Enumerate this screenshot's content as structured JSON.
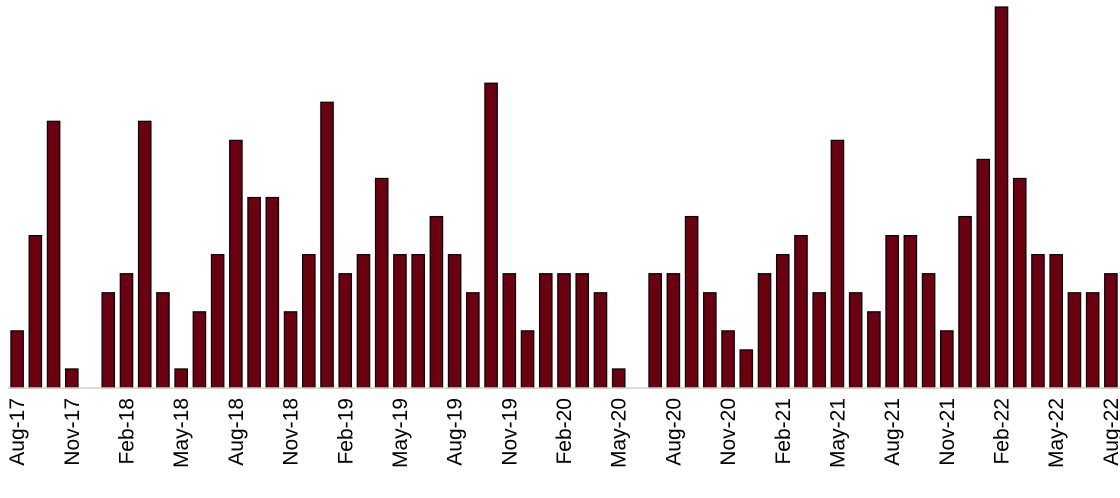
{
  "chart_data": {
    "type": "bar",
    "title": "",
    "xlabel": "",
    "ylabel": "",
    "ylim": [
      0,
      20
    ],
    "grid": false,
    "legend": "none",
    "bar_color": "#6b0010",
    "categories": [
      "Aug-17",
      "Sep-17",
      "Oct-17",
      "Nov-17",
      "Dec-17",
      "Jan-18",
      "Feb-18",
      "Mar-18",
      "Apr-18",
      "May-18",
      "Jun-18",
      "Jul-18",
      "Aug-18",
      "Sep-18",
      "Oct-18",
      "Nov-18",
      "Dec-18",
      "Jan-19",
      "Feb-19",
      "Mar-19",
      "Apr-19",
      "May-19",
      "Jun-19",
      "Jul-19",
      "Aug-19",
      "Sep-19",
      "Oct-19",
      "Nov-19",
      "Dec-19",
      "Jan-20",
      "Feb-20",
      "Mar-20",
      "Apr-20",
      "May-20",
      "Jun-20",
      "Jul-20",
      "Aug-20",
      "Sep-20",
      "Oct-20",
      "Nov-20",
      "Dec-20",
      "Jan-21",
      "Feb-21",
      "Mar-21",
      "Apr-21",
      "May-21",
      "Jun-21",
      "Jul-21",
      "Aug-21",
      "Sep-21",
      "Oct-21",
      "Nov-21",
      "Dec-21",
      "Jan-22",
      "Feb-22",
      "Mar-22",
      "Apr-22",
      "May-22",
      "Jun-22",
      "Jul-22",
      "Aug-22"
    ],
    "tick_labels": [
      "Aug-17",
      "Nov-17",
      "Feb-18",
      "May-18",
      "Aug-18",
      "Nov-18",
      "Feb-19",
      "May-19",
      "Aug-19",
      "Nov-19",
      "Feb-20",
      "May-20",
      "Aug-20",
      "Nov-20",
      "Feb-21",
      "May-21",
      "Aug-21",
      "Nov-21",
      "Feb-22",
      "May-22",
      "Aug-22"
    ],
    "values": [
      3,
      8,
      14,
      1,
      0,
      5,
      6,
      14,
      5,
      1,
      4,
      7,
      13,
      10,
      10,
      4,
      7,
      15,
      6,
      7,
      11,
      7,
      7,
      9,
      7,
      5,
      16,
      6,
      3,
      6,
      6,
      6,
      5,
      1,
      0,
      6,
      6,
      9,
      5,
      3,
      2,
      6,
      7,
      8,
      5,
      13,
      5,
      4,
      8,
      8,
      6,
      3,
      9,
      12,
      20,
      11,
      7,
      7,
      5,
      5,
      6
    ]
  }
}
